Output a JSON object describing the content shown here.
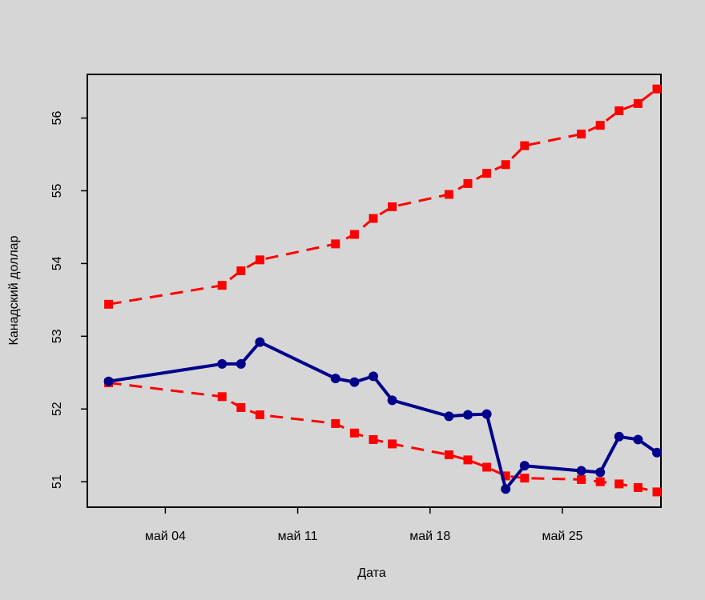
{
  "chart_data": {
    "type": "line",
    "title": "",
    "xlabel": "Дата",
    "ylabel": "Канадский доллар",
    "ylim": [
      50.65,
      56.6
    ],
    "xlim": [
      "2020-04-30",
      "2020-05-30"
    ],
    "x_ticks": [
      {
        "date": "2020-05-04",
        "label": "май 04"
      },
      {
        "date": "2020-05-11",
        "label": "май 11"
      },
      {
        "date": "2020-05-18",
        "label": "май 18"
      },
      {
        "date": "2020-05-25",
        "label": "май 25"
      }
    ],
    "y_ticks": [
      51,
      52,
      53,
      54,
      55,
      56
    ],
    "legend": "none",
    "grid": false,
    "series": [
      {
        "color": "#00008b",
        "line_style": "solid",
        "marker": "circle",
        "points": [
          [
            "2020-05-01",
            52.38
          ],
          [
            "2020-05-07",
            52.62
          ],
          [
            "2020-05-08",
            52.62
          ],
          [
            "2020-05-09",
            52.92
          ],
          [
            "2020-05-13",
            52.42
          ],
          [
            "2020-05-14",
            52.37
          ],
          [
            "2020-05-15",
            52.45
          ],
          [
            "2020-05-16",
            52.12
          ],
          [
            "2020-05-19",
            51.9
          ],
          [
            "2020-05-20",
            51.92
          ],
          [
            "2020-05-21",
            51.93
          ],
          [
            "2020-05-22",
            50.9
          ],
          [
            "2020-05-23",
            51.22
          ],
          [
            "2020-05-26",
            51.15
          ],
          [
            "2020-05-27",
            51.13
          ],
          [
            "2020-05-28",
            51.62
          ],
          [
            "2020-05-29",
            51.58
          ],
          [
            "2020-05-30",
            51.4
          ]
        ]
      },
      {
        "color": "#ff0000",
        "line_style": "dashed",
        "marker": "square",
        "points": [
          [
            "2020-05-01",
            53.44
          ],
          [
            "2020-05-07",
            53.7
          ],
          [
            "2020-05-08",
            53.9
          ],
          [
            "2020-05-09",
            54.05
          ],
          [
            "2020-05-13",
            54.27
          ],
          [
            "2020-05-14",
            54.4
          ],
          [
            "2020-05-15",
            54.62
          ],
          [
            "2020-05-16",
            54.78
          ],
          [
            "2020-05-19",
            54.95
          ],
          [
            "2020-05-20",
            55.1
          ],
          [
            "2020-05-21",
            55.24
          ],
          [
            "2020-05-22",
            55.36
          ],
          [
            "2020-05-23",
            55.62
          ],
          [
            "2020-05-26",
            55.78
          ],
          [
            "2020-05-27",
            55.9
          ],
          [
            "2020-05-28",
            56.1
          ],
          [
            "2020-05-29",
            56.2
          ],
          [
            "2020-05-30",
            56.4
          ]
        ]
      },
      {
        "color": "#ff0000",
        "line_style": "dashed",
        "marker": "square",
        "points": [
          [
            "2020-05-01",
            52.36
          ],
          [
            "2020-05-07",
            52.17
          ],
          [
            "2020-05-08",
            52.02
          ],
          [
            "2020-05-09",
            51.92
          ],
          [
            "2020-05-13",
            51.8
          ],
          [
            "2020-05-14",
            51.67
          ],
          [
            "2020-05-15",
            51.58
          ],
          [
            "2020-05-16",
            51.52
          ],
          [
            "2020-05-19",
            51.37
          ],
          [
            "2020-05-20",
            51.3
          ],
          [
            "2020-05-21",
            51.2
          ],
          [
            "2020-05-22",
            51.08
          ],
          [
            "2020-05-23",
            51.05
          ],
          [
            "2020-05-26",
            51.03
          ],
          [
            "2020-05-27",
            51.0
          ],
          [
            "2020-05-28",
            50.97
          ],
          [
            "2020-05-29",
            50.92
          ],
          [
            "2020-05-30",
            50.86
          ]
        ]
      }
    ]
  }
}
